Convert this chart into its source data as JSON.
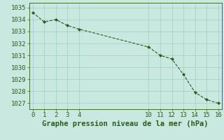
{
  "x": [
    0,
    1,
    2,
    3,
    4,
    10,
    11,
    12,
    13,
    14,
    15,
    16
  ],
  "y": [
    1034.6,
    1033.8,
    1034.0,
    1033.5,
    1033.2,
    1031.7,
    1031.0,
    1030.7,
    1029.4,
    1027.9,
    1027.3,
    1027.0
  ],
  "xlim": [
    -0.3,
    16.3
  ],
  "ylim": [
    1026.5,
    1035.4
  ],
  "yticks": [
    1027,
    1028,
    1029,
    1030,
    1031,
    1032,
    1033,
    1034,
    1035
  ],
  "xticks": [
    0,
    1,
    2,
    3,
    4,
    10,
    11,
    12,
    13,
    14,
    15,
    16
  ],
  "line_color": "#2d5a1e",
  "marker_color": "#2d5a1e",
  "bg_color": "#c8e8e0",
  "grid_color": "#9ecfc4",
  "xlabel": "Graphe pression niveau de la mer (hPa)",
  "xlabel_color": "#2d5a1e",
  "tick_color": "#2d5a1e",
  "tick_fontsize": 6.5,
  "xlabel_fontsize": 7.5
}
